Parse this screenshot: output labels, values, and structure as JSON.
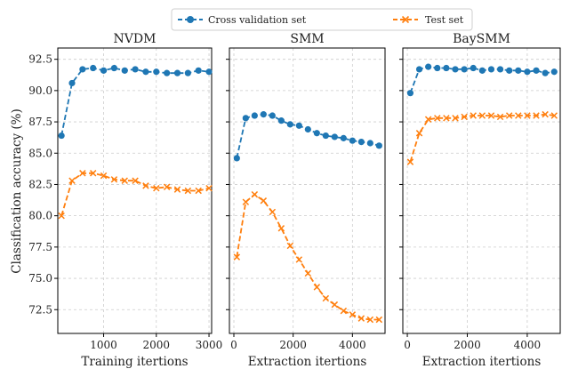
{
  "chart_data": [
    {
      "type": "line",
      "title": "NVDM",
      "xlabel": "Training itertions",
      "ylabel": "Classification accuracy (%)",
      "xlim": [
        130,
        3050
      ],
      "ylim": [
        70.6,
        93.4
      ],
      "xticks": [
        1000,
        2000,
        3000
      ],
      "yticks": [
        72.5,
        75.0,
        77.5,
        80.0,
        82.5,
        85.0,
        87.5,
        90.0,
        92.5
      ],
      "grid": true,
      "series": [
        {
          "name": "Cross validation set",
          "x": [
            200,
            400,
            600,
            800,
            1000,
            1200,
            1400,
            1600,
            1800,
            2000,
            2200,
            2400,
            2600,
            2800,
            3000
          ],
          "values": [
            86.4,
            90.6,
            91.7,
            91.8,
            91.6,
            91.8,
            91.6,
            91.7,
            91.5,
            91.5,
            91.4,
            91.4,
            91.4,
            91.6,
            91.5
          ]
        },
        {
          "name": "Test set",
          "x": [
            200,
            400,
            600,
            800,
            1000,
            1200,
            1400,
            1600,
            1800,
            2000,
            2200,
            2400,
            2600,
            2800,
            3000
          ],
          "values": [
            80.0,
            82.8,
            83.4,
            83.4,
            83.2,
            82.9,
            82.8,
            82.8,
            82.4,
            82.2,
            82.3,
            82.1,
            82.0,
            82.0,
            82.2
          ]
        }
      ]
    },
    {
      "type": "line",
      "title": "SMM",
      "xlabel": "Extraction itertions",
      "ylabel": "",
      "xlim": [
        -150,
        5100
      ],
      "ylim": [
        70.6,
        93.4
      ],
      "xticks": [
        0,
        2000,
        4000
      ],
      "grid": true,
      "series": [
        {
          "name": "Cross validation set",
          "x": [
            100,
            400,
            700,
            1000,
            1300,
            1600,
            1900,
            2200,
            2500,
            2800,
            3100,
            3400,
            3700,
            4000,
            4300,
            4600,
            4900
          ],
          "values": [
            84.6,
            87.8,
            88.0,
            88.1,
            88.0,
            87.6,
            87.3,
            87.2,
            86.9,
            86.6,
            86.4,
            86.3,
            86.2,
            86.0,
            85.9,
            85.8,
            85.6
          ]
        },
        {
          "name": "Test set",
          "x": [
            100,
            400,
            700,
            1000,
            1300,
            1600,
            1900,
            2200,
            2500,
            2800,
            3100,
            3400,
            3700,
            4000,
            4300,
            4600,
            4900
          ],
          "values": [
            76.7,
            81.1,
            81.7,
            81.2,
            80.3,
            79.0,
            77.6,
            76.5,
            75.4,
            74.3,
            73.4,
            72.9,
            72.4,
            72.1,
            71.8,
            71.7,
            71.7
          ]
        }
      ]
    },
    {
      "type": "line",
      "title": "BaySMM",
      "xlabel": "Extraction itertions",
      "ylabel": "",
      "xlim": [
        -150,
        5100
      ],
      "ylim": [
        70.6,
        93.4
      ],
      "xticks": [
        0,
        2000,
        4000
      ],
      "grid": true,
      "series": [
        {
          "name": "Cross validation set",
          "x": [
            100,
            400,
            700,
            1000,
            1300,
            1600,
            1900,
            2200,
            2500,
            2800,
            3100,
            3400,
            3700,
            4000,
            4300,
            4600,
            4900
          ],
          "values": [
            89.8,
            91.7,
            91.9,
            91.8,
            91.8,
            91.7,
            91.7,
            91.8,
            91.6,
            91.7,
            91.7,
            91.6,
            91.6,
            91.5,
            91.6,
            91.4,
            91.5
          ]
        },
        {
          "name": "Test set",
          "x": [
            100,
            400,
            700,
            1000,
            1300,
            1600,
            1900,
            2200,
            2500,
            2800,
            3100,
            3400,
            3700,
            4000,
            4300,
            4600,
            4900
          ],
          "values": [
            84.3,
            86.6,
            87.7,
            87.8,
            87.8,
            87.8,
            87.9,
            88.0,
            88.0,
            88.0,
            87.9,
            88.0,
            88.0,
            88.0,
            88.0,
            88.1,
            88.0
          ]
        }
      ]
    }
  ],
  "legend": {
    "placement": "top-center",
    "entries": [
      {
        "label": "Cross validation set",
        "color": "#1f77b4",
        "marker": "circle"
      },
      {
        "label": "Test set",
        "color": "#ff7f0e",
        "marker": "x"
      }
    ]
  },
  "colors": {
    "series_0": "#1f77b4",
    "series_1": "#ff7f0e",
    "grid": "#cccccc",
    "frame": "#000000"
  }
}
